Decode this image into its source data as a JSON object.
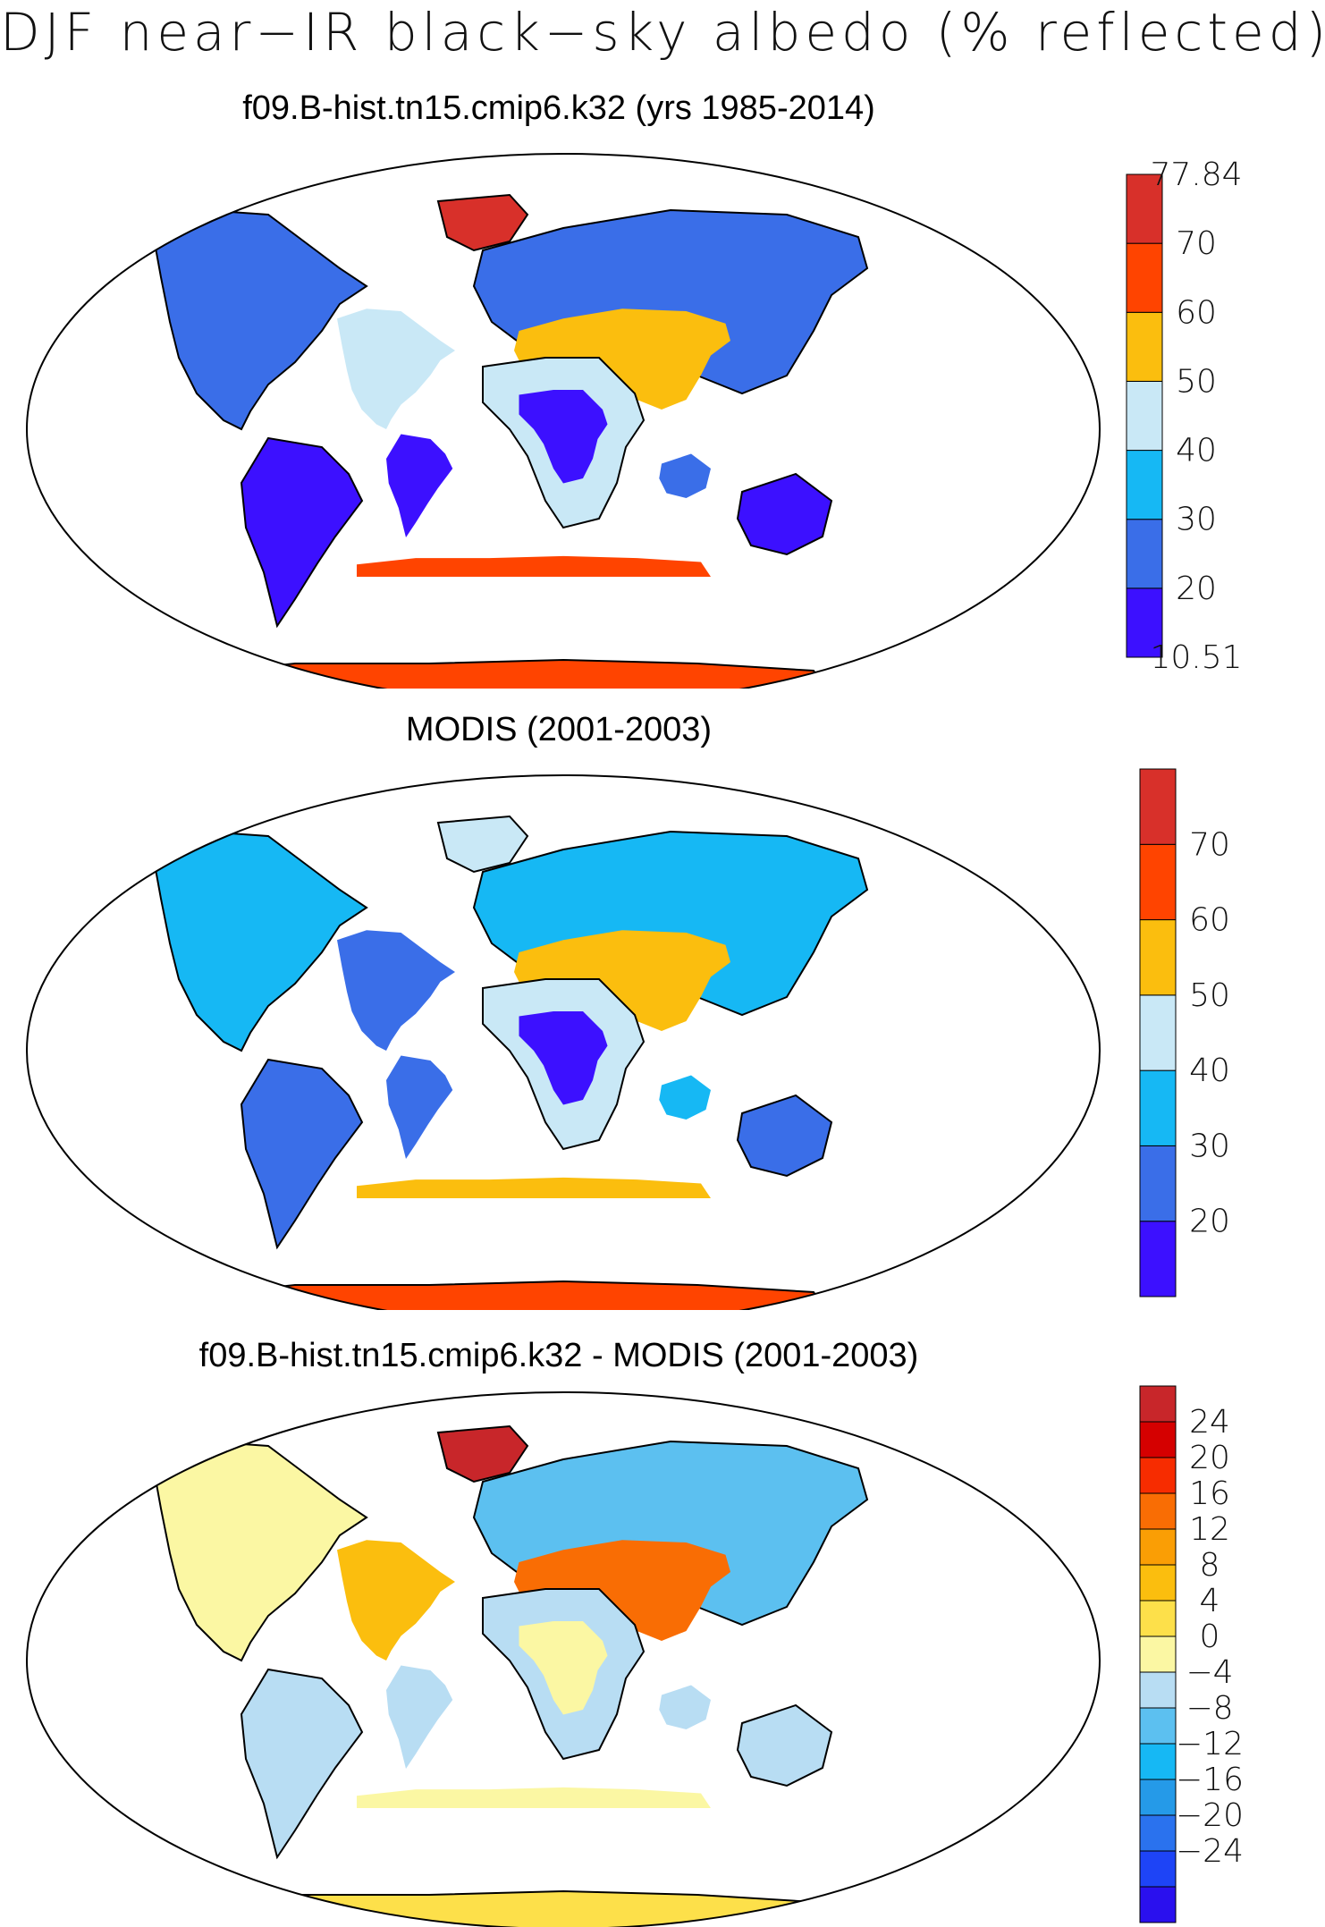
{
  "figure": {
    "title": "DJF near−IR black−sky albedo (% reflected)"
  },
  "colors": {
    "albedo_scale": [
      "#3c10ff",
      "#3a6ee8",
      "#16b8f4",
      "#c9e8f6",
      "#fbbe0e",
      "#ff4400",
      "#d8302a"
    ],
    "diff_scale": [
      "#2a10ee",
      "#1e44f6",
      "#2a72ee",
      "#259ae8",
      "#16b8f4",
      "#5cc0f0",
      "#b8ddf3",
      "#fbf7a3",
      "#fde04a",
      "#fbbe0e",
      "#fa9e05",
      "#f96d04",
      "#f72c00",
      "#d50000",
      "#c8262a"
    ],
    "land_outline": "#000000",
    "ocean": "#ffffff"
  },
  "panels": [
    {
      "title": "f09.B-hist.tn15.cmip6.k32 (yrs 1985-2014)",
      "colorbar": {
        "min_label": "10.51",
        "max_label": "77.84",
        "labels": [
          "70",
          "60",
          "50",
          "40",
          "30",
          "20"
        ],
        "levels": [
          10.51,
          20,
          30,
          40,
          50,
          60,
          70,
          77.84
        ]
      }
    },
    {
      "title": "MODIS (2001-2003)",
      "colorbar": {
        "labels": [
          "70",
          "60",
          "50",
          "40",
          "30",
          "20"
        ],
        "levels": [
          10.51,
          20,
          30,
          40,
          50,
          60,
          70,
          77.84
        ]
      }
    },
    {
      "title": "f09.B-hist.tn15.cmip6.k32 - MODIS (2001-2003)",
      "colorbar": {
        "labels": [
          "24",
          "20",
          "16",
          "12",
          "8",
          "4",
          "0",
          "−4",
          "−8",
          "−12",
          "−16",
          "−20",
          "−24"
        ],
        "levels": [
          -28,
          -24,
          -20,
          -16,
          -12,
          -8,
          -4,
          0,
          4,
          8,
          12,
          16,
          20,
          24,
          28
        ]
      }
    }
  ]
}
